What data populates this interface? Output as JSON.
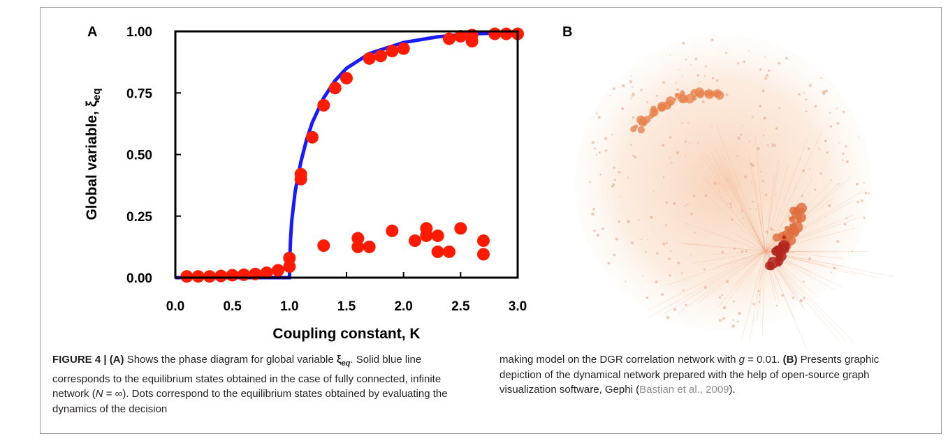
{
  "chart_data": {
    "type": "scatter",
    "panel_label": "A",
    "xlabel": "Coupling constant, K",
    "ylabel": {
      "text": "Global variable, ξ",
      "subscript": "eq"
    },
    "xlim": [
      0,
      3
    ],
    "ylim": [
      0,
      1
    ],
    "xticks": [
      {
        "value": 0,
        "label": "0.0"
      },
      {
        "value": 0.5,
        "label": "0.5"
      },
      {
        "value": 1,
        "label": "1.0"
      },
      {
        "value": 1.5,
        "label": "1.5"
      },
      {
        "value": 2,
        "label": "2.0"
      },
      {
        "value": 2.5,
        "label": "2.5"
      },
      {
        "value": 3,
        "label": "3.0"
      }
    ],
    "yticks": [
      {
        "value": 0,
        "label": "0.00"
      },
      {
        "value": 0.25,
        "label": "0.25"
      },
      {
        "value": 0.5,
        "label": "0.50"
      },
      {
        "value": 0.75,
        "label": "0.75"
      },
      {
        "value": 1,
        "label": "1.00"
      }
    ],
    "line": {
      "color": "#1a1aff",
      "x": [
        0,
        0.5,
        1.0,
        1.005,
        1.01,
        1.02,
        1.05,
        1.1,
        1.15,
        1.2,
        1.3,
        1.4,
        1.5,
        1.7,
        2.0,
        2.3,
        2.6,
        3.0
      ],
      "y": [
        0,
        0,
        0,
        0.1,
        0.16,
        0.23,
        0.35,
        0.47,
        0.56,
        0.63,
        0.73,
        0.8,
        0.85,
        0.91,
        0.955,
        0.978,
        0.99,
        0.996
      ]
    },
    "points": {
      "color": "#ff1a00",
      "x": [
        0.1,
        0.2,
        0.3,
        0.4,
        0.5,
        0.6,
        0.7,
        0.8,
        0.9,
        1.0,
        1.0,
        1.1,
        1.1,
        1.2,
        1.3,
        1.3,
        1.4,
        1.5,
        1.6,
        1.6,
        1.7,
        1.7,
        1.8,
        1.9,
        1.9,
        2.0,
        2.1,
        2.2,
        2.2,
        2.3,
        2.3,
        2.4,
        2.4,
        2.5,
        2.5,
        2.6,
        2.6,
        2.7,
        2.7,
        2.8,
        2.9,
        3.0
      ],
      "y": [
        0.005,
        0.005,
        0.005,
        0.007,
        0.01,
        0.012,
        0.015,
        0.02,
        0.03,
        0.08,
        0.045,
        0.42,
        0.4,
        0.57,
        0.7,
        0.13,
        0.77,
        0.81,
        0.16,
        0.125,
        0.125,
        0.89,
        0.9,
        0.92,
        0.19,
        0.93,
        0.15,
        0.2,
        0.17,
        0.17,
        0.105,
        0.105,
        0.97,
        0.98,
        0.2,
        0.985,
        0.96,
        0.15,
        0.095,
        0.99,
        0.99,
        0.99
      ]
    }
  },
  "panel_b": {
    "label": "B"
  },
  "caption": {
    "left": [
      "FIGURE 4 | (A)",
      " Shows the phase diagram for global variable ",
      "ξ",
      "eq",
      ". Solid blue line corresponds to the equilibrium states obtained in the case of fully connected, infinite network (",
      "N",
      " = ∞). Dots correspond to the equilibrium states obtained by evaluating the dynamics of the decision"
    ],
    "right": [
      "making model on the DGR correlation network with ",
      "g",
      " = 0.01. ",
      "(B)",
      " Presents graphic depiction of the dynamical network prepared with the help of open-source graph visualization software, Gephi (",
      "Bastian et al., 2009",
      ")."
    ]
  }
}
